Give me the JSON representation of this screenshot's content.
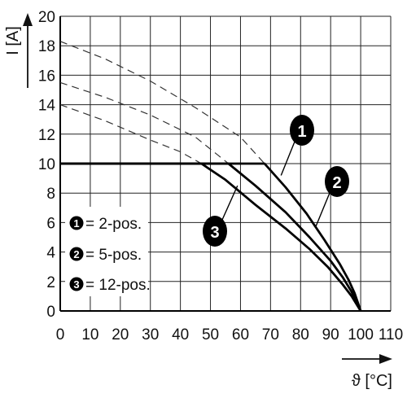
{
  "chart_data": {
    "type": "line",
    "xlabel": "ϑ [°C]",
    "ylabel": "I [A]",
    "xlim": [
      0,
      110
    ],
    "ylim": [
      0,
      20
    ],
    "x_ticks": [
      "0",
      "10",
      "20",
      "30",
      "40",
      "50",
      "60",
      "70",
      "80",
      "90",
      "100",
      "110"
    ],
    "y_ticks": [
      "0",
      "2",
      "4",
      "6",
      "8",
      "10",
      "12",
      "14",
      "16",
      "18",
      "20"
    ],
    "grid": true,
    "series": [
      {
        "marker": "1",
        "style": "solid",
        "points": [
          [
            0,
            10
          ],
          [
            68,
            10
          ],
          [
            75,
            8.4
          ],
          [
            82,
            6.6
          ],
          [
            88,
            4.8
          ],
          [
            93,
            3.2
          ],
          [
            96,
            2.1
          ],
          [
            98,
            1.2
          ],
          [
            100,
            0
          ]
        ]
      },
      {
        "marker": "2",
        "style": "solid",
        "points": [
          [
            0,
            10
          ],
          [
            56,
            10
          ],
          [
            65,
            8.5
          ],
          [
            75,
            6.7
          ],
          [
            83,
            5.0
          ],
          [
            90,
            3.4
          ],
          [
            94,
            2.3
          ],
          [
            97,
            1.3
          ],
          [
            100,
            0
          ]
        ]
      },
      {
        "marker": "3",
        "style": "solid",
        "points": [
          [
            0,
            10
          ],
          [
            47,
            10
          ],
          [
            55,
            8.9
          ],
          [
            65,
            7.2
          ],
          [
            75,
            5.6
          ],
          [
            83,
            4.2
          ],
          [
            89,
            3.0
          ],
          [
            94,
            1.8
          ],
          [
            97,
            1.0
          ],
          [
            100,
            0
          ]
        ]
      },
      {
        "marker": "1",
        "style": "dashed",
        "points": [
          [
            0,
            18.3
          ],
          [
            15,
            17.1
          ],
          [
            30,
            15.6
          ],
          [
            45,
            13.8
          ],
          [
            60,
            11.8
          ],
          [
            68,
            10
          ]
        ]
      },
      {
        "marker": "2",
        "style": "dashed",
        "points": [
          [
            0,
            15.5
          ],
          [
            15,
            14.5
          ],
          [
            30,
            13.3
          ],
          [
            45,
            11.8
          ],
          [
            56,
            10
          ]
        ]
      },
      {
        "marker": "3",
        "style": "dashed",
        "points": [
          [
            0,
            14
          ],
          [
            15,
            12.9
          ],
          [
            30,
            11.6
          ],
          [
            40,
            10.8
          ],
          [
            47,
            10
          ]
        ]
      }
    ],
    "legend": {
      "placement": "bottom-left",
      "entries": [
        {
          "marker": "1",
          "label": "= 2-pos."
        },
        {
          "marker": "2",
          "label": "= 5-pos."
        },
        {
          "marker": "3",
          "label": "= 12-pos."
        }
      ]
    },
    "callouts": [
      {
        "marker": "1",
        "x": 73.5,
        "y": 9.2
      },
      {
        "marker": "2",
        "x": 85,
        "y": 5.7
      },
      {
        "marker": "3",
        "x": 59,
        "y": 8.5
      }
    ]
  }
}
